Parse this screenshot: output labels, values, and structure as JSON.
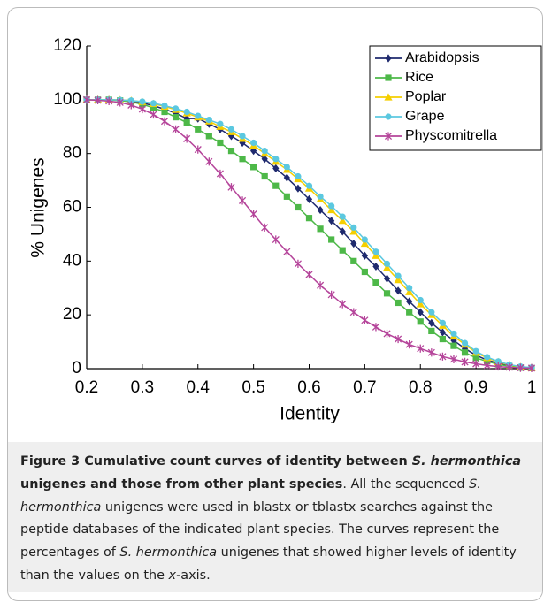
{
  "chart_data": {
    "type": "line",
    "xlabel": "Identity",
    "ylabel": "% Unigenes",
    "xlim": [
      0.2,
      1
    ],
    "ylim": [
      0,
      120
    ],
    "xticks": [
      0.2,
      0.3,
      0.4,
      0.5,
      0.6,
      0.7,
      0.8,
      0.9,
      1
    ],
    "yticks": [
      0,
      20,
      40,
      60,
      80,
      100,
      120
    ],
    "legend": "upper right",
    "x": [
      0.2,
      0.22,
      0.24,
      0.26,
      0.28,
      0.3,
      0.32,
      0.34,
      0.36,
      0.38,
      0.4,
      0.42,
      0.44,
      0.46,
      0.48,
      0.5,
      0.52,
      0.54,
      0.56,
      0.58,
      0.6,
      0.62,
      0.64,
      0.66,
      0.68,
      0.7,
      0.72,
      0.74,
      0.76,
      0.78,
      0.8,
      0.82,
      0.84,
      0.86,
      0.88,
      0.9,
      0.92,
      0.94,
      0.96,
      0.98,
      1
    ],
    "series": [
      {
        "name": "Arabidopsis",
        "color": "#1f2a6e",
        "marker": "diamond",
        "values": [
          100,
          100,
          100,
          99.8,
          99.5,
          98.8,
          97.8,
          96.5,
          95,
          93,
          93,
          91,
          89,
          86.5,
          84,
          81,
          78,
          74.5,
          71,
          67,
          63,
          59,
          55,
          51,
          46.5,
          42,
          38,
          33.5,
          29,
          25,
          21,
          17,
          13.5,
          10.5,
          7.5,
          5,
          3.2,
          2,
          1,
          0.5,
          0.3
        ]
      },
      {
        "name": "Rice",
        "color": "#4db848",
        "marker": "square",
        "values": [
          100,
          100,
          100,
          99.7,
          99.2,
          98.3,
          97,
          95.5,
          93.5,
          91.5,
          89,
          86.5,
          84,
          81,
          78,
          75,
          71.5,
          68,
          64,
          60,
          56,
          52,
          48,
          44,
          40,
          36,
          32,
          28,
          24.5,
          21,
          17.5,
          14,
          11,
          8.5,
          6,
          4,
          2.7,
          1.6,
          0.9,
          0.4,
          0.2
        ]
      },
      {
        "name": "Poplar",
        "color": "#f5cf00",
        "marker": "triangle",
        "values": [
          100,
          100,
          100,
          99.9,
          99.7,
          99.2,
          98.5,
          97.5,
          96.3,
          95,
          93.5,
          92,
          90,
          88,
          85.5,
          83,
          80,
          77,
          74,
          70.5,
          67,
          63,
          59,
          55,
          51,
          46.5,
          42,
          37.5,
          33,
          28.5,
          24,
          20,
          16,
          12,
          9,
          6,
          4,
          2.5,
          1.4,
          0.7,
          0.3
        ]
      },
      {
        "name": "Grape",
        "color": "#5bc8e0",
        "marker": "circle",
        "values": [
          100,
          100,
          100,
          99.9,
          99.7,
          99.3,
          98.7,
          97.8,
          96.7,
          95.5,
          94,
          92.5,
          91,
          89,
          86.5,
          84,
          81,
          78,
          75,
          71.5,
          68,
          64,
          60.5,
          56.5,
          52.5,
          48,
          43.5,
          39,
          34.5,
          30,
          25.5,
          21,
          17,
          13,
          9.5,
          6.5,
          4.3,
          2.7,
          1.5,
          0.8,
          0.4
        ]
      },
      {
        "name": "Physcomitrella",
        "color": "#b5449a",
        "marker": "star",
        "values": [
          100,
          99.8,
          99.5,
          99,
          98,
          96.5,
          94.5,
          92,
          89,
          85.5,
          81.5,
          77,
          72.5,
          67.5,
          62.5,
          57.5,
          52.5,
          48,
          43.5,
          39,
          35,
          31,
          27.5,
          24,
          21,
          18,
          15.5,
          13,
          11,
          9,
          7.5,
          6,
          4.5,
          3.5,
          2.5,
          1.8,
          1.2,
          0.8,
          0.5,
          0.3,
          0.2
        ]
      }
    ]
  },
  "caption": {
    "parts": [
      "Figure 3 Cumulative count curves of identity between ",
      "S. hermonthica",
      " unigenes and those from other plant species",
      ". All the sequenced ",
      "S. hermonthica",
      " unigenes were used in blastx or tblastx searches against the peptide databases of the indicated plant species. The curves represent the percentages of ",
      "S. hermonthica",
      " unigenes that showed higher levels of identity than the values on the ",
      "x",
      "-axis."
    ]
  }
}
